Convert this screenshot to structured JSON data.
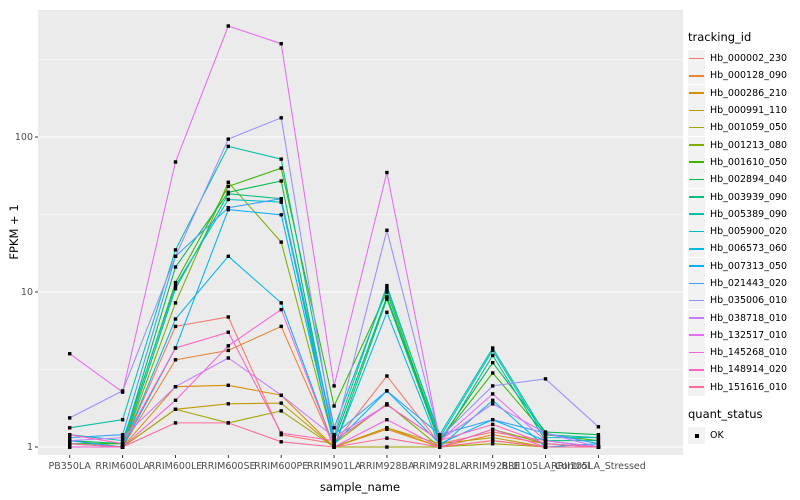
{
  "figure": {
    "ylabel": "FPKM + 1",
    "xlabel": "sample_name",
    "series_legend_title": "tracking_id",
    "quant_legend_title": "quant_status",
    "quant_legend_entry": "OK"
  },
  "colors": {
    "panel_bg": "#EBEBEB",
    "grid_major": "#FFFFFF",
    "grid_minor": "#F7F7F7",
    "tick_mark": "#333333",
    "tick_text": "#4D4D4D",
    "point": "#000000",
    "legend_key_bg": "#F2F2F2"
  },
  "chart_data": {
    "type": "line",
    "title": "",
    "xlabel": "sample_name",
    "ylabel": "FPKM + 1",
    "log_y": true,
    "y_ticks": [
      1,
      10,
      100
    ],
    "ylim": [
      0.89,
      660
    ],
    "grid": true,
    "legend_position": "right",
    "point_marker": "small black square (quant_status = OK) at every data point",
    "categories": [
      "PB350LA",
      "RRIM600LA",
      "RRIM600LE",
      "RRIM600SE",
      "RRIM600PE",
      "RRIM901LA",
      "RRIM928BA",
      "RRIM928LA",
      "RRIM928LE",
      "RRII105LA_Control",
      "RRII105LA_Stressed"
    ],
    "series": [
      {
        "name": "Hb_000002_230",
        "color": "#F8766D",
        "values": [
          1.1,
          1.0,
          6.0,
          6.9,
          1.2,
          1.05,
          2.87,
          1.05,
          1.25,
          1.1,
          1.0
        ]
      },
      {
        "name": "Hb_000128_090",
        "color": "#EA8331",
        "values": [
          1.05,
          1.0,
          3.65,
          4.2,
          6.0,
          1.0,
          1.3,
          1.0,
          1.2,
          1.05,
          1.0
        ]
      },
      {
        "name": "Hb_000286_210",
        "color": "#D89000",
        "values": [
          1.0,
          1.0,
          2.45,
          2.5,
          2.16,
          1.0,
          1.33,
          1.0,
          1.1,
          1.0,
          1.0
        ]
      },
      {
        "name": "Hb_000991_110",
        "color": "#C09B00",
        "values": [
          1.05,
          1.0,
          1.75,
          1.9,
          1.92,
          1.0,
          1.33,
          1.05,
          1.15,
          1.0,
          1.0
        ]
      },
      {
        "name": "Hb_001059_050",
        "color": "#A3A500",
        "values": [
          1.0,
          1.0,
          1.75,
          1.43,
          1.71,
          1.0,
          1.0,
          1.0,
          1.05,
          1.0,
          1.0
        ]
      },
      {
        "name": "Hb_001213_080",
        "color": "#7CAE00",
        "values": [
          1.0,
          1.0,
          8.5,
          51,
          21,
          1.05,
          1.9,
          1.0,
          1.3,
          1.05,
          1.0
        ]
      },
      {
        "name": "Hb_001610_050",
        "color": "#39B600",
        "values": [
          1.05,
          1.05,
          11.5,
          48,
          63,
          1.84,
          10.0,
          1.1,
          3.0,
          1.2,
          1.1
        ]
      },
      {
        "name": "Hb_002894_040",
        "color": "#00BB4E",
        "values": [
          1.1,
          1.05,
          14.5,
          44,
          52,
          1.1,
          9.3,
          1.1,
          3.5,
          1.25,
          1.2
        ]
      },
      {
        "name": "Hb_003939_090",
        "color": "#00BF7D",
        "values": [
          1.0,
          1.0,
          10.5,
          43,
          40,
          1.0,
          9.0,
          1.05,
          3.9,
          1.1,
          1.1
        ]
      },
      {
        "name": "Hb_005389_090",
        "color": "#00C1A3",
        "values": [
          1.33,
          1.5,
          18.7,
          87,
          72,
          1.33,
          10.5,
          1.2,
          4.35,
          1.2,
          1.15
        ]
      },
      {
        "name": "Hb_005900_020",
        "color": "#00BFC4",
        "values": [
          1.2,
          1.1,
          11.0,
          39.5,
          38,
          1.16,
          11.0,
          1.15,
          4.2,
          1.15,
          1.15
        ]
      },
      {
        "name": "Hb_006573_060",
        "color": "#00BAE0",
        "values": [
          1.05,
          1.0,
          6.7,
          17,
          8.5,
          1.0,
          7.4,
          1.0,
          2.0,
          1.0,
          1.05
        ]
      },
      {
        "name": "Hb_007313_050",
        "color": "#00B0F6",
        "values": [
          1.1,
          1.0,
          4.35,
          34,
          31.5,
          1.05,
          2.3,
          1.05,
          1.5,
          1.1,
          1.0
        ]
      },
      {
        "name": "Hb_021443_020",
        "color": "#35A2FF",
        "values": [
          1.15,
          1.2,
          17.0,
          35,
          40,
          1.2,
          2.3,
          1.2,
          1.5,
          1.23,
          1.05
        ]
      },
      {
        "name": "Hb_035006_010",
        "color": "#9590FF",
        "values": [
          1.54,
          2.3,
          17.0,
          97,
          133,
          1.16,
          25,
          1.15,
          2.48,
          2.75,
          1.35
        ]
      },
      {
        "name": "Hb_038718_010",
        "color": "#C77CFF",
        "values": [
          1.1,
          1.15,
          2.45,
          3.75,
          2.16,
          1.16,
          1.87,
          1.1,
          1.9,
          1.23,
          1.0
        ]
      },
      {
        "name": "Hb_132517_010",
        "color": "#E76BF3",
        "values": [
          4.0,
          2.26,
          69,
          520,
          400,
          2.48,
          59,
          1.1,
          2.2,
          1.1,
          1.0
        ]
      },
      {
        "name": "Hb_145268_010",
        "color": "#FA62DB",
        "values": [
          1.0,
          1.0,
          2.0,
          4.5,
          7.7,
          1.0,
          1.5,
          1.0,
          1.3,
          1.0,
          1.0
        ]
      },
      {
        "name": "Hb_148914_020",
        "color": "#FF62BC",
        "values": [
          1.2,
          1.05,
          4.35,
          5.5,
          1.23,
          1.1,
          1.87,
          1.1,
          1.4,
          1.05,
          1.0
        ]
      },
      {
        "name": "Hb_151616_010",
        "color": "#FF6A98",
        "values": [
          1.05,
          1.0,
          1.43,
          1.43,
          1.08,
          1.0,
          1.14,
          1.0,
          1.1,
          1.0,
          1.0
        ]
      }
    ]
  }
}
